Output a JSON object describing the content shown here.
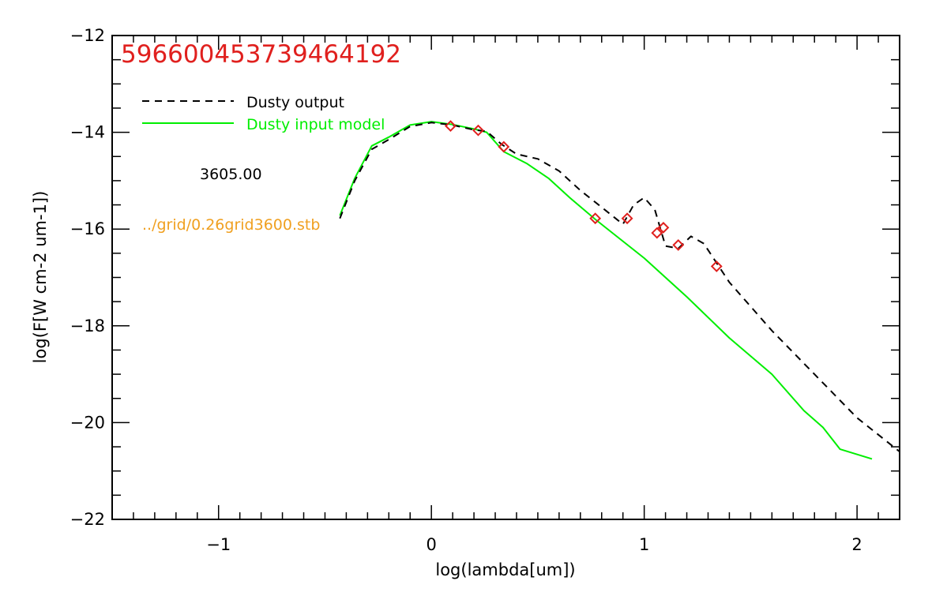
{
  "chart_data": {
    "type": "line",
    "title": "596600453739464192",
    "xlabel": "log(lambda[um])",
    "ylabel": "log(F[W cm-2 um-1])",
    "xlim": [
      -1.5,
      2.2
    ],
    "ylim": [
      -22,
      -12
    ],
    "x_ticks": [
      -1,
      0,
      1,
      2
    ],
    "x_tick_labels": [
      "−1",
      "0",
      "1",
      "2"
    ],
    "y_ticks": [
      -22,
      -20,
      -18,
      -16,
      -14,
      -12
    ],
    "y_tick_labels": [
      "−22",
      "−20",
      "−18",
      "−16",
      "−14",
      "−12"
    ],
    "annotations": {
      "temperature": "3605.00",
      "grid_file": "../grid/0.26grid3600.stb"
    },
    "legend_position": "top-left",
    "colors": {
      "title": "#e0201e",
      "output": "#000000",
      "input": "#00ee00",
      "points": "#e0201e",
      "grid_file": "#f0a020"
    },
    "series": [
      {
        "name": "Dusty output",
        "style": "dashed",
        "points": [
          [
            -0.43,
            -15.78
          ],
          [
            -0.36,
            -15.0
          ],
          [
            -0.28,
            -14.35
          ],
          [
            -0.2,
            -14.15
          ],
          [
            -0.1,
            -13.88
          ],
          [
            0.0,
            -13.8
          ],
          [
            0.1,
            -13.85
          ],
          [
            0.2,
            -13.95
          ],
          [
            0.26,
            -13.98
          ],
          [
            0.33,
            -14.25
          ],
          [
            0.4,
            -14.45
          ],
          [
            0.5,
            -14.55
          ],
          [
            0.6,
            -14.8
          ],
          [
            0.7,
            -15.2
          ],
          [
            0.8,
            -15.55
          ],
          [
            0.9,
            -15.9
          ],
          [
            0.95,
            -15.5
          ],
          [
            1.0,
            -15.35
          ],
          [
            1.05,
            -15.6
          ],
          [
            1.1,
            -16.35
          ],
          [
            1.16,
            -16.4
          ],
          [
            1.22,
            -16.15
          ],
          [
            1.28,
            -16.3
          ],
          [
            1.4,
            -17.1
          ],
          [
            1.6,
            -18.1
          ],
          [
            1.8,
            -19.0
          ],
          [
            2.0,
            -19.9
          ],
          [
            2.2,
            -20.6
          ]
        ]
      },
      {
        "name": "Dusty input model",
        "style": "solid",
        "points": [
          [
            -0.43,
            -15.72
          ],
          [
            -0.36,
            -14.95
          ],
          [
            -0.28,
            -14.28
          ],
          [
            -0.2,
            -14.1
          ],
          [
            -0.1,
            -13.85
          ],
          [
            0.0,
            -13.78
          ],
          [
            0.1,
            -13.84
          ],
          [
            0.2,
            -13.93
          ],
          [
            0.26,
            -14.0
          ],
          [
            0.34,
            -14.4
          ],
          [
            0.45,
            -14.65
          ],
          [
            0.55,
            -14.95
          ],
          [
            0.65,
            -15.35
          ],
          [
            0.77,
            -15.8
          ],
          [
            1.0,
            -16.6
          ],
          [
            1.2,
            -17.4
          ],
          [
            1.4,
            -18.25
          ],
          [
            1.6,
            -19.0
          ],
          [
            1.75,
            -19.75
          ],
          [
            1.84,
            -20.1
          ],
          [
            1.92,
            -20.55
          ],
          [
            2.07,
            -20.75
          ]
        ]
      },
      {
        "name": "",
        "style": "markers",
        "points": [
          [
            0.09,
            -13.87
          ],
          [
            0.22,
            -13.96
          ],
          [
            0.34,
            -14.3
          ],
          [
            0.77,
            -15.78
          ],
          [
            0.92,
            -15.78
          ],
          [
            1.06,
            -16.08
          ],
          [
            1.09,
            -15.97
          ],
          [
            1.16,
            -16.33
          ],
          [
            1.34,
            -16.77
          ]
        ]
      }
    ]
  }
}
